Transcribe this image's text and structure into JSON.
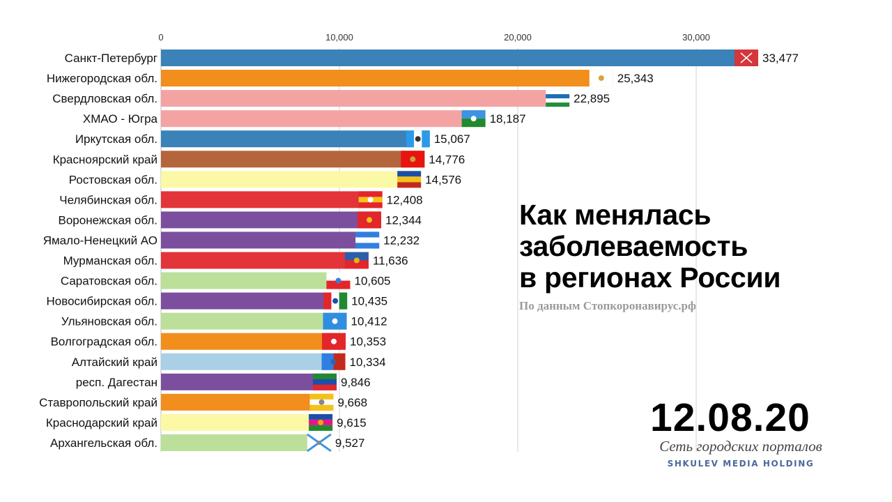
{
  "chart_data": {
    "type": "bar",
    "orientation": "horizontal",
    "title": "Как менялась заболеваемость в регионах России",
    "subtitle": "По данным Стопкоронавирус.рф",
    "date": "12.08.20",
    "xlabel": "",
    "ylabel": "",
    "xlim": [
      0,
      35000
    ],
    "x_ticks": [
      0,
      10000,
      20000,
      30000
    ],
    "x_tick_labels": [
      "0",
      "10,000",
      "20,000",
      "30,000"
    ],
    "grid": true,
    "categories": [
      "Санкт-Петербург",
      "Нижегородская обл.",
      "Свердловская обл.",
      "ХМАО - Югра",
      "Иркутская обл.",
      "Красноярский край",
      "Ростовская обл.",
      "Челябинская обл.",
      "Воронежская обл.",
      "Ямало-Ненецкий АО",
      "Мурманская обл.",
      "Саратовская обл.",
      "Новосибирская обл.",
      "Ульяновская обл.",
      "Волгоградская обл.",
      "Алтайский край",
      "респ. Дагестан",
      "Ставропольский край",
      "Краснодарский край",
      "Архангельская обл."
    ],
    "values": [
      33477,
      25343,
      22895,
      18187,
      15067,
      14776,
      14576,
      12408,
      12344,
      12232,
      11636,
      10605,
      10435,
      10412,
      10353,
      10334,
      9846,
      9668,
      9615,
      9527
    ],
    "value_labels": [
      "33,477",
      "25,343",
      "22,895",
      "18,187",
      "15,067",
      "14,776",
      "14,576",
      "12,408",
      "12,344",
      "12,232",
      "11,636",
      "10,605",
      "10,435",
      "10,412",
      "10,353",
      "10,334",
      "9,846",
      "9,668",
      "9,615",
      "9,527"
    ],
    "colors": [
      "#3a82b8",
      "#f28e1c",
      "#f4a3a3",
      "#f4a3a3",
      "#3a82b8",
      "#b5653b",
      "#fbf9a6",
      "#e3343a",
      "#7b4f9e",
      "#7b4f9e",
      "#e3343a",
      "#bcdf9a",
      "#7b4f9e",
      "#bcdf9a",
      "#f28e1c",
      "#a9d0e6",
      "#7b4f9e",
      "#f28e1c",
      "#fbf9a6",
      "#bcdf9a"
    ],
    "flags": [
      {
        "name": "saint-petersburg-flag-icon",
        "stripes": [
          "#d4363b"
        ],
        "emblem": "#ffffff"
      },
      {
        "name": "nizhny-novgorod-flag-icon",
        "stripes": [
          "#ffffff"
        ],
        "emblem": "#d9a23a"
      },
      {
        "name": "sverdlovsk-flag-icon",
        "stripes": [
          "#ffffff",
          "#1a6fb5",
          "#ffffff",
          "#1f8f3a"
        ],
        "emblem": null
      },
      {
        "name": "khmao-flag-icon",
        "stripes": [
          "#3d94e0",
          "#1f8a2e"
        ],
        "emblem": "#ffffff"
      },
      {
        "name": "irkutsk-flag-icon",
        "stripes": [
          "#2b9ae8",
          "#ffffff",
          "#2b9ae8"
        ],
        "emblem": "#333333",
        "vertical": true
      },
      {
        "name": "krasnoyarsk-flag-icon",
        "stripes": [
          "#e8140f"
        ],
        "emblem": "#c8a23a"
      },
      {
        "name": "rostov-flag-icon",
        "stripes": [
          "#1d4fa8",
          "#f3c21a",
          "#c42a1c"
        ],
        "emblem": null
      },
      {
        "name": "chelyabinsk-flag-icon",
        "stripes": [
          "#e3262a",
          "#f7c21a",
          "#e3262a"
        ],
        "emblem": "#ffffff"
      },
      {
        "name": "voronezh-flag-icon",
        "stripes": [
          "#e3262a"
        ],
        "emblem": "#f2c21a"
      },
      {
        "name": "yamalo-nenets-flag-icon",
        "stripes": [
          "#2f7fe0",
          "#ffffff",
          "#2f7fe0"
        ],
        "emblem": null
      },
      {
        "name": "murmansk-flag-icon",
        "stripes": [
          "#2f5ea8",
          "#e3262a"
        ],
        "emblem": "#e3b31a"
      },
      {
        "name": "saratov-flag-icon",
        "stripes": [
          "#ffffff",
          "#e3262a"
        ],
        "emblem": "#3a7fd0"
      },
      {
        "name": "novosibirsk-flag-icon",
        "stripes": [
          "#e3262a",
          "#ffffff",
          "#1f8a2e"
        ],
        "emblem": "#1a4fa8",
        "vertical": true
      },
      {
        "name": "ulyanovsk-flag-icon",
        "stripes": [
          "#2f8ee0"
        ],
        "emblem": "#ffffff"
      },
      {
        "name": "volgograd-flag-icon",
        "stripes": [
          "#e3262a"
        ],
        "emblem": "#ffffff"
      },
      {
        "name": "altai-krai-flag-icon",
        "stripes": [
          "#2f7fe0",
          "#c42a1c"
        ],
        "emblem": "#3a5fa8",
        "vertical": true
      },
      {
        "name": "dagestan-flag-icon",
        "stripes": [
          "#1f8a2e",
          "#1d4fa8",
          "#e3262a"
        ],
        "emblem": null
      },
      {
        "name": "stavropol-flag-icon",
        "stripes": [
          "#f3c21a",
          "#ffffff",
          "#f3c21a"
        ],
        "emblem": "#888888"
      },
      {
        "name": "krasnodar-flag-icon",
        "stripes": [
          "#1d4fa8",
          "#e3168a",
          "#1f8a2e"
        ],
        "emblem": "#f3a21a"
      },
      {
        "name": "arkhangelsk-flag-icon",
        "stripes": [
          "#ffffff"
        ],
        "emblem": "#3d94e0"
      }
    ]
  },
  "branding": {
    "script": "Сеть городских порталов",
    "name": "SHKULEV MEDIA HOLDING"
  }
}
